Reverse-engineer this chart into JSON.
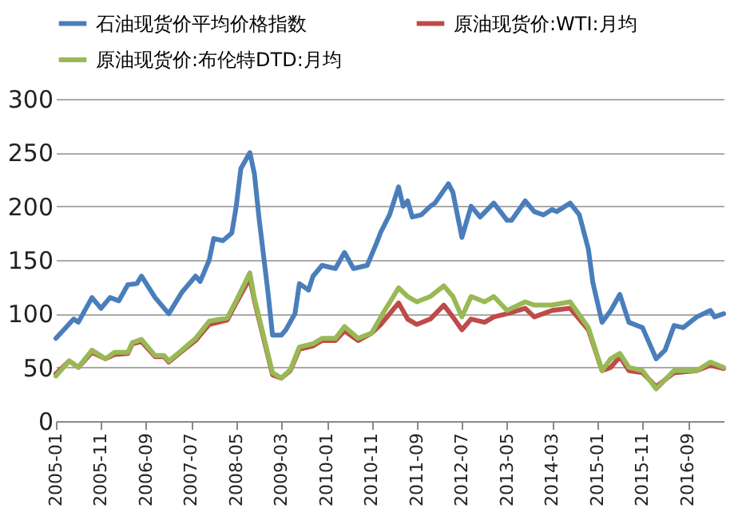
{
  "chart_data": {
    "type": "line",
    "legend": "top",
    "grid": "y",
    "line_style": "solid",
    "marker": "none",
    "ylim": [
      0,
      300
    ],
    "yticks": [
      0,
      50,
      100,
      150,
      200,
      250,
      300
    ],
    "xlim": [
      "2005-01",
      "2017-05"
    ],
    "xticks": [
      "2005-01",
      "2005-11",
      "2006-09",
      "2007-07",
      "2008-05",
      "2009-03",
      "2010-01",
      "2010-11",
      "2011-09",
      "2012-07",
      "2013-05",
      "2014-03",
      "2015-01",
      "2015-11",
      "2016-09"
    ],
    "series": [
      {
        "name": "石油现货价平均价格指数",
        "color": "#4a7ebb",
        "x": [
          "2005-01",
          "2005-05",
          "2005-06",
          "2005-09",
          "2005-11",
          "2006-01",
          "2006-03",
          "2006-05",
          "2006-07",
          "2006-08",
          "2006-11",
          "2007-02",
          "2007-05",
          "2007-08",
          "2007-09",
          "2007-11",
          "2007-12",
          "2008-02",
          "2008-04",
          "2008-05",
          "2008-06",
          "2008-08",
          "2008-09",
          "2008-10",
          "2008-12",
          "2009-01",
          "2009-03",
          "2009-04",
          "2009-06",
          "2009-07",
          "2009-09",
          "2009-10",
          "2009-12",
          "2010-03",
          "2010-05",
          "2010-07",
          "2010-10",
          "2010-12",
          "2011-01",
          "2011-03",
          "2011-05",
          "2011-06",
          "2011-07",
          "2011-08",
          "2011-10",
          "2011-12",
          "2012-01",
          "2012-04",
          "2012-05",
          "2012-07",
          "2012-09",
          "2012-11",
          "2013-02",
          "2013-05",
          "2013-06",
          "2013-09",
          "2013-11",
          "2014-01",
          "2014-03",
          "2014-04",
          "2014-07",
          "2014-09",
          "2014-11",
          "2014-12",
          "2015-02",
          "2015-04",
          "2015-06",
          "2015-08",
          "2015-11",
          "2016-02",
          "2016-04",
          "2016-06",
          "2016-08",
          "2016-11",
          "2017-02",
          "2017-03",
          "2017-05"
        ],
        "values": [
          77,
          95,
          92,
          115,
          105,
          115,
          112,
          127,
          128,
          135,
          115,
          100,
          120,
          135,
          130,
          150,
          170,
          168,
          175,
          200,
          235,
          250,
          230,
          190,
          120,
          80,
          80,
          85,
          100,
          128,
          122,
          135,
          145,
          142,
          157,
          142,
          145,
          165,
          176,
          192,
          218,
          200,
          205,
          190,
          192,
          200,
          203,
          221,
          213,
          171,
          200,
          190,
          203,
          187,
          187,
          205,
          195,
          192,
          197,
          195,
          203,
          192,
          160,
          129,
          92,
          103,
          118,
          92,
          87,
          58,
          66,
          89,
          87,
          97,
          103,
          97,
          100
        ]
      },
      {
        "name": "原油现货价:WTI:月均",
        "color": "#be4b48",
        "x": [
          "2005-01",
          "2005-04",
          "2005-06",
          "2005-09",
          "2005-12",
          "2006-02",
          "2006-05",
          "2006-06",
          "2006-08",
          "2006-11",
          "2007-01",
          "2007-02",
          "2007-05",
          "2007-08",
          "2007-11",
          "2008-03",
          "2008-05",
          "2008-08",
          "2008-09",
          "2009-01",
          "2009-03",
          "2009-05",
          "2009-07",
          "2009-10",
          "2009-12",
          "2010-03",
          "2010-05",
          "2010-08",
          "2010-11",
          "2011-01",
          "2011-05",
          "2011-07",
          "2011-09",
          "2011-12",
          "2012-03",
          "2012-05",
          "2012-07",
          "2012-09",
          "2012-12",
          "2013-02",
          "2013-05",
          "2013-09",
          "2013-11",
          "2014-03",
          "2014-07",
          "2014-11",
          "2015-02",
          "2015-04",
          "2015-06",
          "2015-08",
          "2015-11",
          "2016-02",
          "2016-06",
          "2016-11",
          "2017-02",
          "2017-05"
        ],
        "values": [
          44,
          56,
          50,
          64,
          58,
          62,
          63,
          72,
          74,
          60,
          60,
          55,
          65,
          75,
          90,
          94,
          110,
          133,
          112,
          43,
          40,
          47,
          67,
          70,
          75,
          75,
          84,
          75,
          82,
          90,
          110,
          95,
          90,
          95,
          108,
          97,
          85,
          95,
          92,
          97,
          100,
          105,
          97,
          103,
          105,
          85,
          47,
          50,
          60,
          47,
          45,
          32,
          45,
          47,
          52,
          49
        ]
      },
      {
        "name": "原油现货价:布伦特DTD:月均",
        "color": "#98b954",
        "x": [
          "2005-01",
          "2005-04",
          "2005-06",
          "2005-09",
          "2005-12",
          "2006-02",
          "2006-05",
          "2006-06",
          "2006-08",
          "2006-11",
          "2007-01",
          "2007-02",
          "2007-05",
          "2007-08",
          "2007-11",
          "2008-03",
          "2008-05",
          "2008-08",
          "2008-09",
          "2009-01",
          "2009-03",
          "2009-05",
          "2009-07",
          "2009-10",
          "2009-12",
          "2010-03",
          "2010-05",
          "2010-08",
          "2010-11",
          "2011-01",
          "2011-05",
          "2011-07",
          "2011-09",
          "2011-12",
          "2012-03",
          "2012-05",
          "2012-07",
          "2012-09",
          "2012-12",
          "2013-02",
          "2013-05",
          "2013-09",
          "2013-11",
          "2014-03",
          "2014-07",
          "2014-11",
          "2015-02",
          "2015-04",
          "2015-06",
          "2015-08",
          "2015-11",
          "2016-02",
          "2016-06",
          "2016-11",
          "2017-02",
          "2017-05"
        ],
        "values": [
          42,
          56,
          50,
          66,
          58,
          64,
          64,
          73,
          76,
          61,
          61,
          56,
          66,
          77,
          93,
          96,
          112,
          138,
          114,
          45,
          40,
          48,
          69,
          72,
          77,
          77,
          88,
          77,
          82,
          97,
          124,
          116,
          111,
          116,
          126,
          116,
          97,
          116,
          111,
          116,
          103,
          111,
          108,
          108,
          111,
          87,
          47,
          58,
          63,
          50,
          47,
          30,
          47,
          47,
          55,
          50
        ]
      }
    ]
  }
}
